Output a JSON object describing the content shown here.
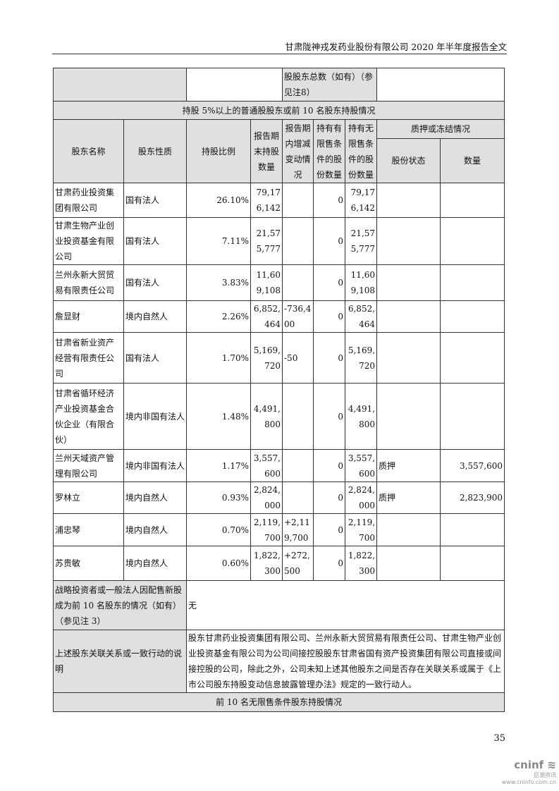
{
  "header": "甘肃陇神戎发药业股份有限公司 2020 年半年度报告全文",
  "top_row": {
    "label": "股股东总数（如有）（参见注8）"
  },
  "section_title": "持股 5%以上的普通股股东或前 10 名股东持股情况",
  "columns": {
    "name": "股东名称",
    "nature": "股东性质",
    "ratio": "持股比例",
    "end_shares": "报告期末持股数量",
    "change": "报告期内增减变动情况",
    "restricted": "持有有限售条件的股份数量",
    "unrestricted": "持有无限售条件的股份数量",
    "pledge": "质押或冻结情况",
    "status": "股份状态",
    "quantity": "数量"
  },
  "rows": [
    {
      "name": "甘肃药业投资集团有限公司",
      "nature": "国有法人",
      "ratio": "26.10%",
      "end_shares": "79,176,142",
      "change": "",
      "restricted": "0",
      "unrestricted": "79,176,142",
      "status": "",
      "quantity": ""
    },
    {
      "name": "甘肃生物产业创业投资基金有限公司",
      "nature": "国有法人",
      "ratio": "7.11%",
      "end_shares": "21,575,777",
      "change": "",
      "restricted": "0",
      "unrestricted": "21,575,777",
      "status": "",
      "quantity": ""
    },
    {
      "name": "兰州永新大贸贸易有限责任公司",
      "nature": "国有法人",
      "ratio": "3.83%",
      "end_shares": "11,609,108",
      "change": "",
      "restricted": "0",
      "unrestricted": "11,609,108",
      "status": "",
      "quantity": ""
    },
    {
      "name": "詹显财",
      "nature": "境内自然人",
      "ratio": "2.26%",
      "end_shares": "6,852,464",
      "change": "-736,400",
      "restricted": "0",
      "unrestricted": "6,852,464",
      "status": "",
      "quantity": ""
    },
    {
      "name": "甘肃省新业资产经营有限责任公司",
      "nature": "国有法人",
      "ratio": "1.70%",
      "end_shares": "5,169,720",
      "change": "-50",
      "restricted": "0",
      "unrestricted": "5,169,720",
      "status": "",
      "quantity": ""
    },
    {
      "name": "甘肃省循环经济产业投资基金合伙企业（有限合伙）",
      "nature": "境内非国有法人",
      "ratio": "1.48%",
      "end_shares": "4,491,800",
      "change": "",
      "restricted": "0",
      "unrestricted": "4,491,800",
      "status": "",
      "quantity": ""
    },
    {
      "name": "兰州天域资产管理有限公司",
      "nature": "境内非国有法人",
      "ratio": "1.17%",
      "end_shares": "3,557,600",
      "change": "",
      "restricted": "0",
      "unrestricted": "3,557,600",
      "status": "质押",
      "quantity": "3,557,600"
    },
    {
      "name": "罗林立",
      "nature": "境内自然人",
      "ratio": "0.93%",
      "end_shares": "2,824,000",
      "change": "",
      "restricted": "0",
      "unrestricted": "2,824,000",
      "status": "质押",
      "quantity": "2,823,900"
    },
    {
      "name": "浦忠琴",
      "nature": "境内自然人",
      "ratio": "0.70%",
      "end_shares": "2,119,700",
      "change": "+2,119,700",
      "restricted": "0",
      "unrestricted": "2,119,700",
      "status": "",
      "quantity": ""
    },
    {
      "name": "苏贵敏",
      "nature": "境内自然人",
      "ratio": "0.60%",
      "end_shares": "1,822,300",
      "change": "+272,500",
      "restricted": "0",
      "unrestricted": "1,822,300",
      "status": "",
      "quantity": ""
    }
  ],
  "strategic": {
    "label": "战略投资者或一般法人因配售新股成为前 10 名股东的情况（如有）（参见注 3）",
    "value": "无"
  },
  "relation": {
    "label": "上述股东关联关系或一致行动的说明",
    "value": "股东甘肃药业投资集团有限公司、兰州永新大贸贸易有限责任公司、甘肃生物产业创业投资基金有限公司为公司间接控股股东甘肃省国有资产投资集团有限公司直接或间接控股的公司，除此之外，公司未知上述其他股东之间是否存在关联关系或属于《上市公司股东持股变动信息披露管理办法》规定的一致行动人。"
  },
  "footer_section": "前 10 名无限售条件股东持股情况",
  "page_number": "35",
  "logo": {
    "brand": "cninf",
    "cn": "巨潮资讯",
    "url": "www.cninfo.com.cn"
  }
}
